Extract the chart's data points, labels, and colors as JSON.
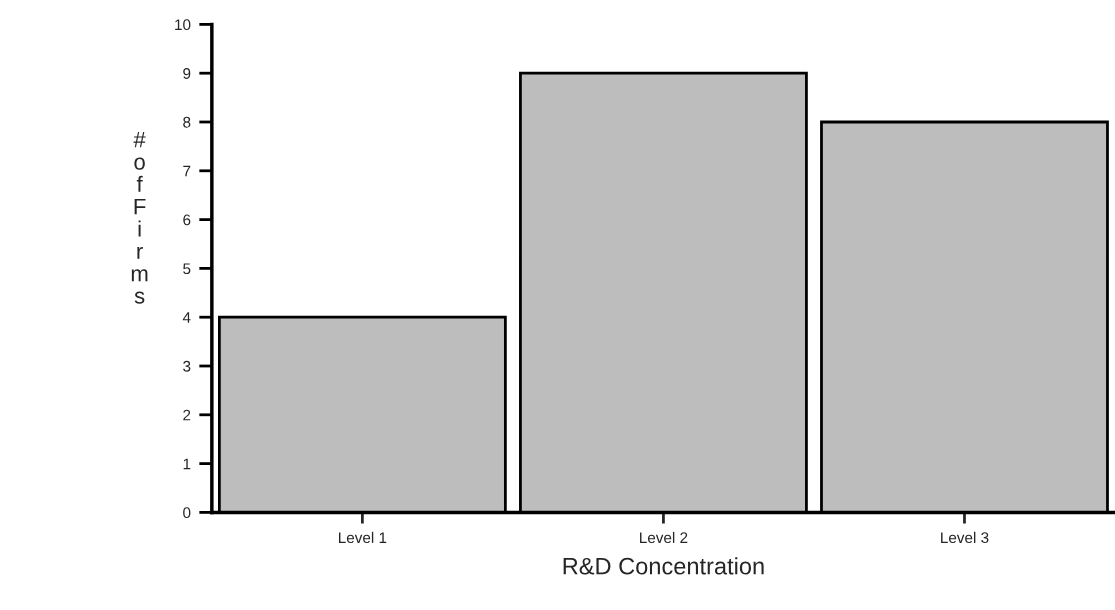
{
  "chart_data": {
    "type": "bar",
    "xlabel": "R&D Concentration",
    "ylabel": "# of Firms",
    "categories": [
      "Level 1",
      "Level 2",
      "Level 3"
    ],
    "values": [
      4,
      9,
      8
    ],
    "color": "#bdbdbd",
    "ylim": [
      0,
      10
    ],
    "yticks": [
      0,
      1,
      2,
      3,
      4,
      5,
      6,
      7,
      8,
      9,
      10
    ],
    "grid": false,
    "legend": false
  }
}
